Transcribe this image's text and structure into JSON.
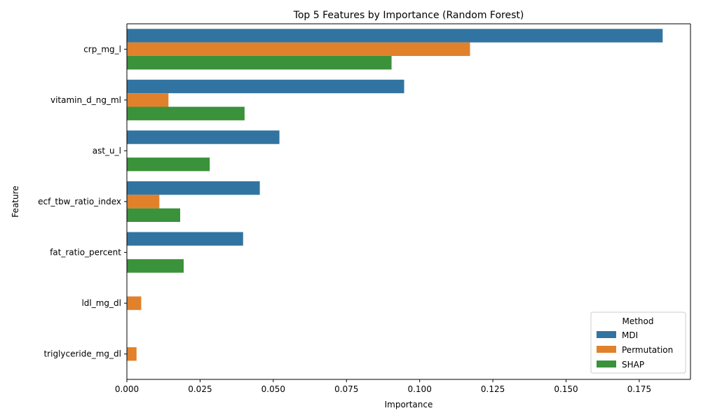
{
  "chart_data": {
    "type": "bar",
    "orientation": "horizontal",
    "title": "Top 5 Features by Importance (Random Forest)",
    "xlabel": "Importance",
    "ylabel": "Feature",
    "xlim": [
      0,
      0.1925
    ],
    "x_ticks": [
      0.0,
      0.025,
      0.05,
      0.075,
      0.1,
      0.125,
      0.15,
      0.175
    ],
    "x_tick_labels": [
      "0.000",
      "0.025",
      "0.050",
      "0.075",
      "0.100",
      "0.125",
      "0.150",
      "0.175"
    ],
    "categories": [
      "crp_mg_l",
      "vitamin_d_ng_ml",
      "ast_u_l",
      "ecf_tbw_ratio_index",
      "fat_ratio_percent",
      "ldl_mg_dl",
      "triglyceride_mg_dl"
    ],
    "series": [
      {
        "name": "MDI",
        "color": "#3274a1",
        "values": [
          0.183,
          0.0947,
          0.0521,
          0.0454,
          0.0397,
          null,
          null
        ]
      },
      {
        "name": "Permutation",
        "color": "#e1812c",
        "values": [
          0.1172,
          0.0142,
          null,
          0.0111,
          null,
          0.0049,
          0.0033
        ]
      },
      {
        "name": "SHAP",
        "color": "#3a923a",
        "values": [
          0.0904,
          0.0402,
          0.0283,
          0.0182,
          0.0194,
          null,
          null
        ]
      }
    ],
    "legend": {
      "title": "Method",
      "placement": "lower-right"
    },
    "grid": false
  }
}
